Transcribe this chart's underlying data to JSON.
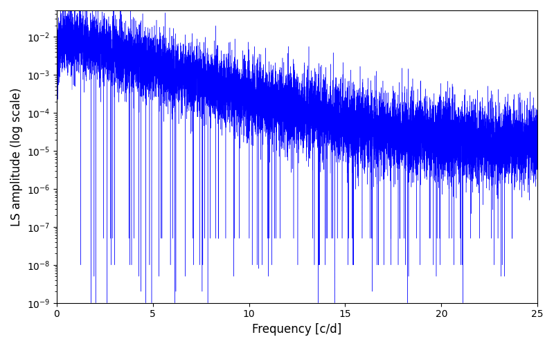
{
  "title": "",
  "xlabel": "Frequency [c/d]",
  "ylabel": "LS amplitude (log scale)",
  "xlim": [
    0,
    25
  ],
  "ylim": [
    1e-09,
    0.05
  ],
  "line_color": "#0000ff",
  "line_width": 0.3,
  "figsize": [
    8.0,
    5.0
  ],
  "dpi": 100,
  "freq_max": 25.0,
  "n_points": 12000,
  "seed": 7,
  "background_color": "#ffffff"
}
